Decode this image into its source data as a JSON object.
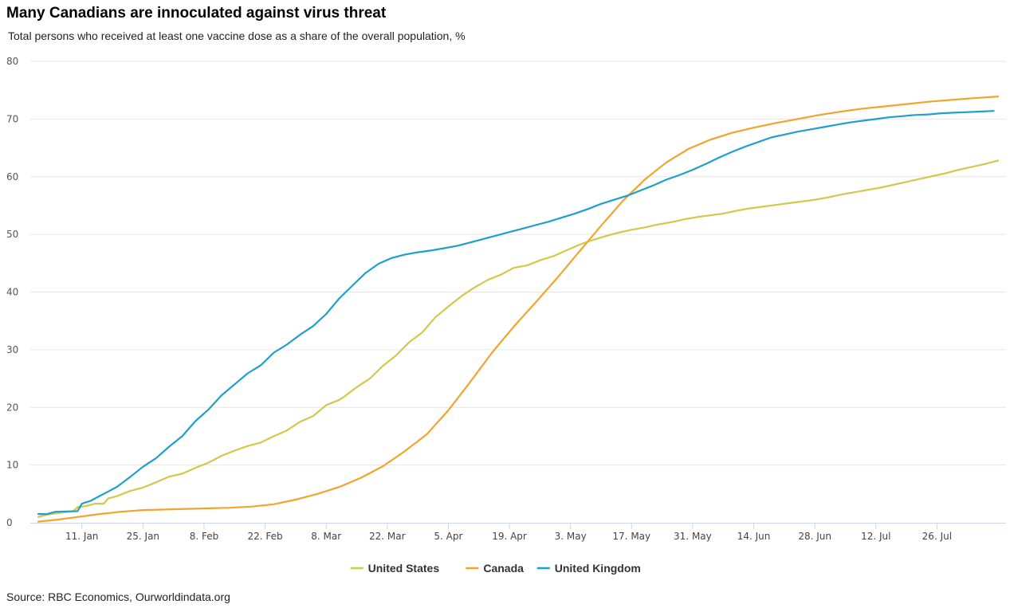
{
  "header": {
    "title": "Many Canadians are innoculated against virus threat",
    "subtitle": "Total persons who received at least one vaccine dose as a share of the overall population, %"
  },
  "footer": {
    "source": "Source: RBC Economics, Ourworldindata.org"
  },
  "chart_data": {
    "type": "line",
    "title": "Many Canadians are innoculated against virus threat",
    "subtitle": "Total persons who received at least one vaccine dose as a share of the overall population, %",
    "xlabel": "",
    "ylabel": "",
    "x_unit": "days since 1 Jan 2021",
    "xlim": [
      1,
      221
    ],
    "ylim": [
      0,
      80
    ],
    "y_ticks": [
      0,
      10,
      20,
      30,
      40,
      50,
      60,
      70,
      80
    ],
    "x_ticks": [
      {
        "day": 11,
        "label": "11. Jan"
      },
      {
        "day": 25,
        "label": "25. Jan"
      },
      {
        "day": 39,
        "label": "8. Feb"
      },
      {
        "day": 53,
        "label": "22. Feb"
      },
      {
        "day": 67,
        "label": "8. Mar"
      },
      {
        "day": 81,
        "label": "22. Mar"
      },
      {
        "day": 95,
        "label": "5. Apr"
      },
      {
        "day": 109,
        "label": "19. Apr"
      },
      {
        "day": 123,
        "label": "3. May"
      },
      {
        "day": 137,
        "label": "17. May"
      },
      {
        "day": 151,
        "label": "31. May"
      },
      {
        "day": 165,
        "label": "14. Jun"
      },
      {
        "day": 179,
        "label": "28. Jun"
      },
      {
        "day": 193,
        "label": "12. Jul"
      },
      {
        "day": 207,
        "label": "26. Jul"
      }
    ],
    "grid": true,
    "legend_position": "bottom-center",
    "colors": {
      "United States": "#d4c84b",
      "Canada": "#f2a42e",
      "United Kingdom": "#1f9fcc",
      "grid": "#e6e6e6",
      "axis": "#ccd6eb"
    },
    "series": [
      {
        "name": "United States",
        "x": [
          1,
          3,
          6,
          9,
          10,
          12,
          14,
          16,
          17,
          19,
          22,
          25,
          28,
          31,
          34,
          37,
          40,
          43,
          46,
          49,
          52,
          55,
          58,
          61,
          64,
          67,
          70,
          71,
          74,
          77,
          80,
          83,
          86,
          89,
          92,
          95,
          98,
          101,
          104,
          107,
          110,
          113,
          116,
          119,
          122,
          125,
          128,
          131,
          134,
          137,
          140,
          143,
          146,
          149,
          152,
          155,
          158,
          161,
          164,
          167,
          170,
          173,
          176,
          179,
          182,
          185,
          188,
          191,
          194,
          197,
          200,
          203,
          206,
          209,
          212,
          215,
          218,
          221
        ],
        "y": [
          1.0,
          1.4,
          1.7,
          2.0,
          2.7,
          2.9,
          3.3,
          3.3,
          4.2,
          4.6,
          5.5,
          6.1,
          7.0,
          8.0,
          8.5,
          9.5,
          10.4,
          11.6,
          12.5,
          13.3,
          13.9,
          15.0,
          16.0,
          17.5,
          18.5,
          20.4,
          21.3,
          21.8,
          23.5,
          25.0,
          27.2,
          29.0,
          31.3,
          33.0,
          35.6,
          37.5,
          39.3,
          40.8,
          42.1,
          43.0,
          44.2,
          44.6,
          45.5,
          46.2,
          47.2,
          48.2,
          49.0,
          49.7,
          50.3,
          50.8,
          51.2,
          51.7,
          52.1,
          52.6,
          53.0,
          53.3,
          53.6,
          54.1,
          54.5,
          54.8,
          55.1,
          55.4,
          55.7,
          56.0,
          56.4,
          56.9,
          57.3,
          57.7,
          58.1,
          58.6,
          59.1,
          59.6,
          60.1,
          60.6,
          61.2,
          61.7,
          62.2,
          62.8
        ]
      },
      {
        "name": "Canada",
        "x": [
          1,
          5,
          10,
          15,
          20,
          25,
          30,
          35,
          40,
          45,
          50,
          55,
          60,
          65,
          70,
          75,
          80,
          85,
          90,
          95,
          100,
          105,
          110,
          115,
          120,
          125,
          130,
          135,
          140,
          145,
          150,
          155,
          160,
          165,
          170,
          175,
          180,
          185,
          190,
          195,
          200,
          205,
          210,
          215,
          221
        ],
        "y": [
          0.2,
          0.5,
          1.0,
          1.5,
          1.9,
          2.2,
          2.3,
          2.4,
          2.5,
          2.6,
          2.8,
          3.2,
          4.0,
          5.0,
          6.2,
          7.8,
          9.8,
          12.4,
          15.3,
          19.5,
          24.4,
          29.5,
          34.0,
          38.2,
          42.5,
          47.0,
          51.5,
          55.8,
          59.5,
          62.5,
          64.8,
          66.4,
          67.6,
          68.5,
          69.3,
          70.0,
          70.7,
          71.3,
          71.8,
          72.2,
          72.6,
          73.0,
          73.3,
          73.6,
          73.9
        ]
      },
      {
        "name": "United Kingdom",
        "x": [
          1,
          3,
          5,
          10,
          11,
          13,
          16,
          19,
          22,
          25,
          28,
          31,
          34,
          37,
          40,
          43,
          46,
          49,
          52,
          55,
          58,
          61,
          64,
          67,
          70,
          73,
          76,
          79,
          82,
          85,
          88,
          91,
          94,
          97,
          100,
          103,
          106,
          109,
          112,
          115,
          118,
          121,
          124,
          127,
          130,
          133,
          136,
          139,
          142,
          145,
          148,
          151,
          154,
          157,
          160,
          163,
          166,
          169,
          172,
          175,
          178,
          181,
          184,
          187,
          190,
          193,
          196,
          199,
          202,
          205,
          208,
          211,
          214,
          217,
          220
        ],
        "y": [
          1.5,
          1.5,
          1.9,
          2.0,
          3.3,
          3.8,
          5.0,
          6.2,
          7.9,
          9.7,
          11.2,
          13.2,
          15.0,
          17.6,
          19.6,
          22.1,
          24.0,
          25.9,
          27.3,
          29.5,
          30.9,
          32.6,
          34.1,
          36.2,
          38.9,
          41.1,
          43.3,
          44.9,
          45.9,
          46.5,
          46.9,
          47.2,
          47.6,
          48.0,
          48.6,
          49.2,
          49.8,
          50.4,
          51.0,
          51.6,
          52.2,
          52.9,
          53.6,
          54.4,
          55.3,
          56.0,
          56.7,
          57.6,
          58.5,
          59.5,
          60.3,
          61.2,
          62.2,
          63.3,
          64.3,
          65.2,
          66.0,
          66.8,
          67.3,
          67.8,
          68.2,
          68.6,
          69.0,
          69.4,
          69.7,
          70.0,
          70.3,
          70.5,
          70.7,
          70.8,
          71.0,
          71.1,
          71.2,
          71.3,
          71.4
        ]
      }
    ]
  }
}
